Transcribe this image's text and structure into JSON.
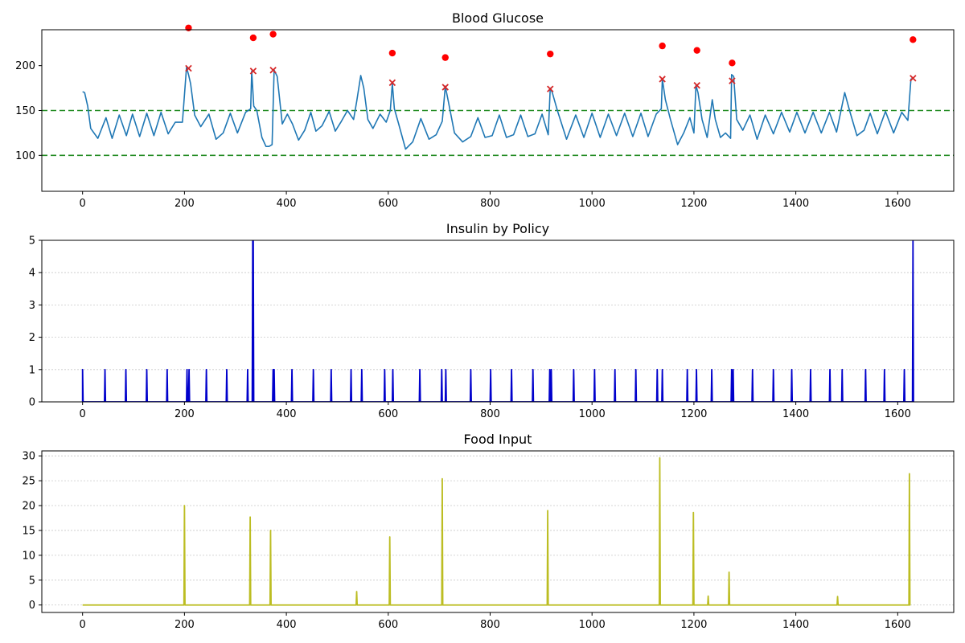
{
  "chart_data": [
    {
      "type": "line",
      "title": "Blood Glucose",
      "xlabel": "",
      "ylabel": "",
      "xlim": [
        -80,
        1710
      ],
      "ylim": [
        60,
        240
      ],
      "x_ticks": [
        0,
        200,
        400,
        600,
        800,
        1000,
        1200,
        1400,
        1600
      ],
      "y_ticks": [
        100,
        150,
        200
      ],
      "grid": false,
      "reference_lines": [
        {
          "y": 150,
          "color": "#228b22",
          "style": "dashed"
        },
        {
          "y": 100,
          "color": "#228b22",
          "style": "dashed"
        }
      ],
      "series": [
        {
          "color": "#1f77b4",
          "x": [
            0,
            4,
            10,
            16,
            30,
            46,
            58,
            72,
            86,
            98,
            112,
            126,
            140,
            154,
            168,
            182,
            196,
            204,
            208,
            212,
            220,
            232,
            248,
            262,
            276,
            290,
            304,
            320,
            330,
            332,
            336,
            342,
            352,
            360,
            366,
            372,
            376,
            382,
            392,
            402,
            412,
            424,
            436,
            448,
            458,
            470,
            484,
            496,
            508,
            520,
            532,
            538,
            546,
            552,
            560,
            570,
            584,
            596,
            604,
            608,
            612,
            620,
            634,
            648,
            664,
            680,
            694,
            706,
            712,
            718,
            730,
            746,
            762,
            776,
            790,
            804,
            818,
            832,
            846,
            860,
            874,
            888,
            902,
            914,
            918,
            922,
            932,
            950,
            968,
            984,
            1000,
            1016,
            1032,
            1048,
            1064,
            1080,
            1096,
            1110,
            1126,
            1136,
            1138,
            1144,
            1154,
            1168,
            1180,
            1192,
            1200,
            1204,
            1208,
            1216,
            1226,
            1236,
            1242,
            1252,
            1262,
            1272,
            1274,
            1278,
            1284,
            1296,
            1310,
            1324,
            1340,
            1356,
            1372,
            1388,
            1402,
            1418,
            1434,
            1450,
            1466,
            1480,
            1496,
            1506,
            1520,
            1534,
            1546,
            1560,
            1576,
            1592,
            1608,
            1620,
            1626,
            1630
          ],
          "y": [
            171,
            170,
            155,
            130,
            119,
            142,
            119,
            145,
            122,
            146,
            121,
            147,
            122,
            148,
            124,
            137,
            137,
            198,
            190,
            180,
            145,
            132,
            146,
            118,
            125,
            147,
            125,
            148,
            152,
            194,
            155,
            150,
            120,
            110,
            110,
            112,
            195,
            188,
            135,
            146,
            135,
            117,
            128,
            148,
            127,
            133,
            149,
            127,
            138,
            150,
            140,
            160,
            189,
            175,
            140,
            130,
            146,
            137,
            150,
            180,
            152,
            136,
            107,
            115,
            141,
            118,
            123,
            138,
            177,
            160,
            125,
            115,
            121,
            142,
            120,
            122,
            145,
            120,
            123,
            145,
            121,
            124,
            146,
            123,
            175,
            170,
            150,
            118,
            145,
            120,
            147,
            120,
            146,
            122,
            147,
            121,
            147,
            121,
            146,
            152,
            185,
            162,
            140,
            112,
            125,
            142,
            125,
            178,
            170,
            140,
            120,
            162,
            140,
            120,
            125,
            119,
            190,
            188,
            140,
            128,
            145,
            118,
            145,
            124,
            148,
            126,
            148,
            125,
            148,
            125,
            148,
            126,
            170,
            149,
            122,
            128,
            147,
            124,
            149,
            125,
            148,
            139,
            185,
            186
          ]
        }
      ],
      "markers": {
        "crosses": {
          "color": "#d62728",
          "points": [
            [
              208,
              197
            ],
            [
              335,
              194
            ],
            [
              374,
              195
            ],
            [
              608,
              181
            ],
            [
              712,
              176
            ],
            [
              918,
              174
            ],
            [
              1138,
              185
            ],
            [
              1206,
              178
            ],
            [
              1275,
              183
            ],
            [
              1630,
              186
            ]
          ]
        },
        "dots": {
          "color": "#ff0000",
          "points": [
            [
              208,
              242
            ],
            [
              335,
              231
            ],
            [
              374,
              235
            ],
            [
              608,
              214
            ],
            [
              712,
              209
            ],
            [
              918,
              213
            ],
            [
              1138,
              222
            ],
            [
              1206,
              217
            ],
            [
              1275,
              203
            ],
            [
              1630,
              229
            ]
          ]
        }
      }
    },
    {
      "type": "line",
      "title": "Insulin by Policy",
      "xlabel": "",
      "ylabel": "",
      "xlim": [
        -80,
        1710
      ],
      "ylim": [
        0,
        5
      ],
      "x_ticks": [
        0,
        200,
        400,
        600,
        800,
        1000,
        1200,
        1400,
        1600
      ],
      "y_ticks": [
        0,
        1,
        2,
        3,
        4,
        5
      ],
      "grid": true,
      "series": [
        {
          "color": "#0000cc",
          "spikes": [
            [
              0,
              1
            ],
            [
              44,
              1
            ],
            [
              85,
              1
            ],
            [
              126,
              1
            ],
            [
              166,
              1
            ],
            [
              205,
              1
            ],
            [
              209,
              1
            ],
            [
              243,
              1
            ],
            [
              283,
              1
            ],
            [
              324,
              1
            ],
            [
              334,
              5
            ],
            [
              335,
              5
            ],
            [
              374,
              1
            ],
            [
              376,
              1
            ],
            [
              411,
              1
            ],
            [
              453,
              1
            ],
            [
              488,
              1
            ],
            [
              527,
              1
            ],
            [
              548,
              1
            ],
            [
              593,
              1
            ],
            [
              609,
              1
            ],
            [
              662,
              1
            ],
            [
              705,
              1
            ],
            [
              713,
              1
            ],
            [
              762,
              1
            ],
            [
              801,
              1
            ],
            [
              842,
              1
            ],
            [
              884,
              1
            ],
            [
              917,
              1
            ],
            [
              920,
              1
            ],
            [
              964,
              1
            ],
            [
              1005,
              1
            ],
            [
              1045,
              1
            ],
            [
              1086,
              1
            ],
            [
              1128,
              1
            ],
            [
              1138,
              1
            ],
            [
              1187,
              1
            ],
            [
              1205,
              1
            ],
            [
              1235,
              1
            ],
            [
              1274,
              1
            ],
            [
              1277,
              1
            ],
            [
              1315,
              1
            ],
            [
              1356,
              1
            ],
            [
              1392,
              1
            ],
            [
              1429,
              1
            ],
            [
              1467,
              1
            ],
            [
              1491,
              1
            ],
            [
              1537,
              1
            ],
            [
              1574,
              1
            ],
            [
              1613,
              1
            ],
            [
              1630,
              5
            ]
          ]
        }
      ]
    },
    {
      "type": "line",
      "title": "Food Input",
      "xlabel": "",
      "ylabel": "",
      "xlim": [
        -80,
        1710
      ],
      "ylim": [
        -1.5,
        31
      ],
      "x_ticks": [
        0,
        200,
        400,
        600,
        800,
        1000,
        1200,
        1400,
        1600
      ],
      "y_ticks": [
        0,
        5,
        10,
        15,
        20,
        25,
        30
      ],
      "grid": true,
      "series": [
        {
          "color": "#bcbd22",
          "spikes": [
            [
              200,
              20
            ],
            [
              329,
              17.7
            ],
            [
              369,
              15
            ],
            [
              538,
              2.7
            ],
            [
              603,
              13.7
            ],
            [
              706,
              25.4
            ],
            [
              913,
              19
            ],
            [
              1133,
              29.6
            ],
            [
              1199,
              18.6
            ],
            [
              1228,
              1.8
            ],
            [
              1269,
              6.6
            ],
            [
              1482,
              1.7
            ],
            [
              1623,
              26.4
            ]
          ]
        }
      ]
    }
  ]
}
